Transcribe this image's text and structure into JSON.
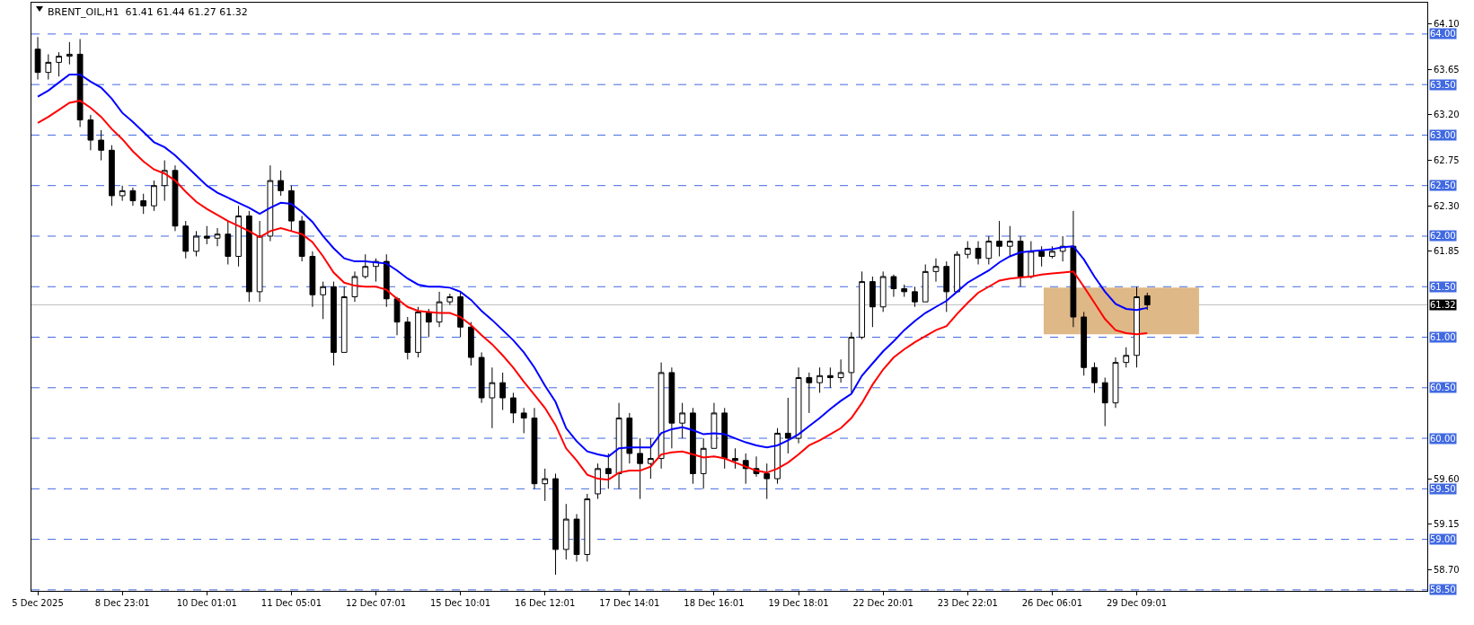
{
  "chart_data": {
    "type": "candlestick",
    "title": "BRENT_OIL,H1  61.41 61.44 61.27 61.32",
    "categories": [
      "5 Dec 2025",
      null,
      null,
      null,
      null,
      null,
      null,
      null,
      "8 Dec 23:01",
      null,
      null,
      null,
      null,
      null,
      null,
      null,
      "10 Dec 01:01",
      null,
      null,
      null,
      null,
      null,
      null,
      null,
      "11 Dec 05:01",
      null,
      null,
      null,
      null,
      null,
      null,
      null,
      "12 Dec 07:01",
      null,
      null,
      null,
      null,
      null,
      null,
      null,
      "15 Dec 10:01",
      null,
      null,
      null,
      null,
      null,
      null,
      null,
      "16 Dec 12:01",
      null,
      null,
      null,
      null,
      null,
      null,
      null,
      "17 Dec 14:01",
      null,
      null,
      null,
      null,
      null,
      null,
      null,
      "18 Dec 16:01",
      null,
      null,
      null,
      null,
      null,
      null,
      null,
      "19 Dec 18:01",
      null,
      null,
      null,
      null,
      null,
      null,
      null,
      "22 Dec 20:01",
      null,
      null,
      null,
      null,
      null,
      null,
      null,
      "23 Dec 22:01",
      null,
      null,
      null,
      null,
      null,
      null,
      null,
      "26 Dec 06:01",
      null,
      null,
      null,
      null,
      null,
      null,
      null,
      "29 Dec 09:01",
      null
    ],
    "ohlc": [
      [
        63.85,
        63.97,
        63.55,
        63.62
      ],
      [
        63.62,
        63.8,
        63.55,
        63.72
      ],
      [
        63.72,
        63.82,
        63.58,
        63.78
      ],
      [
        63.78,
        63.92,
        63.7,
        63.8
      ],
      [
        63.8,
        63.95,
        63.08,
        63.15
      ],
      [
        63.15,
        63.2,
        62.85,
        62.95
      ],
      [
        62.95,
        63.05,
        62.75,
        62.85
      ],
      [
        62.85,
        62.9,
        62.3,
        62.4
      ],
      [
        62.4,
        62.5,
        62.35,
        62.45
      ],
      [
        62.45,
        62.48,
        62.3,
        62.35
      ],
      [
        62.35,
        62.42,
        62.22,
        62.3
      ],
      [
        62.3,
        62.55,
        62.25,
        62.5
      ],
      [
        62.5,
        62.75,
        62.35,
        62.65
      ],
      [
        62.65,
        62.7,
        62.05,
        62.1
      ],
      [
        62.1,
        62.15,
        61.78,
        61.85
      ],
      [
        61.85,
        62.05,
        61.8,
        62.0
      ],
      [
        62.0,
        62.1,
        61.92,
        61.98
      ],
      [
        61.98,
        62.08,
        61.9,
        62.02
      ],
      [
        62.02,
        62.15,
        61.72,
        61.8
      ],
      [
        61.8,
        62.3,
        61.7,
        62.2
      ],
      [
        62.2,
        62.25,
        61.35,
        61.45
      ],
      [
        61.45,
        62.15,
        61.35,
        62.0
      ],
      [
        62.0,
        62.7,
        61.95,
        62.55
      ],
      [
        62.55,
        62.65,
        62.4,
        62.45
      ],
      [
        62.45,
        62.5,
        62.05,
        62.15
      ],
      [
        62.15,
        62.2,
        61.75,
        61.8
      ],
      [
        61.8,
        61.85,
        61.3,
        61.42
      ],
      [
        61.42,
        61.55,
        61.18,
        61.5
      ],
      [
        61.5,
        61.55,
        60.72,
        60.85
      ],
      [
        60.85,
        61.5,
        60.85,
        61.4
      ],
      [
        61.4,
        61.65,
        61.35,
        61.6
      ],
      [
        61.6,
        61.82,
        61.58,
        61.7
      ],
      [
        61.7,
        61.78,
        61.55,
        61.75
      ],
      [
        61.75,
        61.82,
        61.3,
        61.38
      ],
      [
        61.38,
        61.4,
        61.02,
        61.15
      ],
      [
        61.15,
        61.2,
        60.78,
        60.85
      ],
      [
        60.85,
        61.3,
        60.8,
        61.25
      ],
      [
        61.25,
        61.28,
        61.0,
        61.15
      ],
      [
        61.15,
        61.45,
        61.1,
        61.35
      ],
      [
        61.35,
        61.43,
        61.32,
        61.4
      ],
      [
        61.4,
        61.45,
        61.0,
        61.1
      ],
      [
        61.1,
        61.15,
        60.72,
        60.8
      ],
      [
        60.8,
        60.85,
        60.35,
        60.4
      ],
      [
        60.4,
        60.7,
        60.1,
        60.55
      ],
      [
        60.55,
        60.65,
        60.28,
        60.4
      ],
      [
        60.4,
        60.45,
        60.15,
        60.25
      ],
      [
        60.25,
        60.3,
        60.05,
        60.2
      ],
      [
        60.2,
        60.3,
        59.5,
        59.55
      ],
      [
        59.55,
        59.7,
        59.38,
        59.6
      ],
      [
        59.6,
        59.65,
        58.65,
        58.9
      ],
      [
        58.9,
        59.35,
        58.8,
        59.2
      ],
      [
        59.2,
        59.25,
        58.78,
        58.85
      ],
      [
        58.85,
        59.45,
        58.78,
        59.4
      ],
      [
        59.45,
        59.75,
        59.4,
        59.7
      ],
      [
        59.7,
        59.85,
        59.5,
        59.65
      ],
      [
        59.65,
        60.35,
        59.5,
        60.2
      ],
      [
        60.2,
        60.25,
        59.75,
        59.85
      ],
      [
        59.85,
        60.0,
        59.4,
        59.75
      ],
      [
        59.75,
        60.0,
        59.6,
        59.8
      ],
      [
        59.8,
        60.75,
        59.7,
        60.65
      ],
      [
        60.65,
        60.7,
        59.9,
        60.15
      ],
      [
        60.15,
        60.35,
        60.0,
        60.25
      ],
      [
        60.25,
        60.3,
        59.55,
        59.65
      ],
      [
        59.65,
        60.0,
        59.5,
        59.9
      ],
      [
        59.9,
        60.35,
        59.9,
        60.25
      ],
      [
        60.25,
        60.3,
        59.7,
        59.8
      ],
      [
        59.8,
        59.9,
        59.7,
        59.78
      ],
      [
        59.78,
        59.85,
        59.55,
        59.7
      ],
      [
        59.7,
        59.82,
        59.62,
        59.65
      ],
      [
        59.65,
        59.75,
        59.4,
        59.6
      ],
      [
        59.6,
        60.1,
        59.55,
        60.05
      ],
      [
        60.05,
        60.4,
        59.85,
        60.0
      ],
      [
        60.0,
        60.7,
        59.95,
        60.6
      ],
      [
        60.6,
        60.65,
        60.25,
        60.55
      ],
      [
        60.55,
        60.7,
        60.45,
        60.62
      ],
      [
        60.62,
        60.7,
        60.5,
        60.6
      ],
      [
        60.6,
        60.78,
        60.55,
        60.65
      ],
      [
        60.65,
        61.05,
        60.45,
        61.0
      ],
      [
        61.0,
        61.65,
        60.98,
        61.55
      ],
      [
        61.55,
        61.6,
        61.1,
        61.3
      ],
      [
        61.3,
        61.65,
        61.25,
        61.6
      ],
      [
        61.6,
        61.62,
        61.4,
        61.48
      ],
      [
        61.48,
        61.52,
        61.4,
        61.45
      ],
      [
        61.45,
        61.5,
        61.3,
        61.35
      ],
      [
        61.35,
        61.72,
        61.35,
        61.65
      ],
      [
        61.65,
        61.78,
        61.55,
        61.7
      ],
      [
        61.7,
        61.75,
        61.25,
        61.45
      ],
      [
        61.45,
        61.85,
        61.45,
        61.82
      ],
      [
        61.82,
        61.95,
        61.78,
        61.88
      ],
      [
        61.88,
        61.95,
        61.72,
        61.78
      ],
      [
        61.78,
        62.0,
        61.72,
        61.95
      ],
      [
        61.95,
        62.15,
        61.8,
        61.9
      ],
      [
        61.9,
        62.1,
        61.8,
        61.95
      ],
      [
        61.95,
        62.0,
        61.5,
        61.6
      ],
      [
        61.6,
        61.95,
        61.58,
        61.85
      ],
      [
        61.85,
        61.9,
        61.7,
        61.8
      ],
      [
        61.8,
        61.9,
        61.78,
        61.85
      ],
      [
        61.85,
        62.0,
        61.75,
        61.9
      ],
      [
        61.9,
        62.25,
        61.1,
        61.2
      ],
      [
        61.2,
        61.25,
        60.62,
        60.7
      ],
      [
        60.7,
        60.75,
        60.45,
        60.55
      ],
      [
        60.55,
        60.6,
        60.12,
        60.35
      ],
      [
        60.35,
        60.8,
        60.3,
        60.75
      ],
      [
        60.75,
        60.9,
        60.7,
        60.82
      ],
      [
        60.82,
        61.5,
        60.7,
        61.4
      ],
      [
        61.41,
        61.44,
        61.27,
        61.32
      ]
    ],
    "series": [
      {
        "type": "line",
        "color": "#0000ff",
        "values": [
          63.38,
          63.44,
          63.52,
          63.6,
          63.6,
          63.53,
          63.47,
          63.36,
          63.22,
          63.13,
          63.03,
          62.93,
          62.88,
          62.8,
          62.7,
          62.6,
          62.5,
          62.43,
          62.38,
          62.33,
          62.28,
          62.22,
          62.28,
          62.33,
          62.32,
          62.24,
          62.14,
          62.0,
          61.88,
          61.78,
          61.75,
          61.75,
          61.74,
          61.73,
          61.66,
          61.58,
          61.52,
          61.5,
          61.5,
          61.49,
          61.45,
          61.37,
          61.26,
          61.17,
          61.07,
          60.97,
          60.85,
          60.7,
          60.52,
          60.36,
          60.1,
          59.97,
          59.87,
          59.84,
          59.82,
          59.9,
          59.91,
          59.91,
          59.91,
          60.05,
          60.09,
          60.11,
          60.08,
          60.04,
          60.05,
          60.04,
          60.0,
          59.96,
          59.93,
          59.91,
          59.93,
          59.98,
          60.04,
          60.12,
          60.2,
          60.29,
          60.37,
          60.44,
          60.62,
          60.74,
          60.86,
          60.96,
          61.07,
          61.16,
          61.24,
          61.3,
          61.36,
          61.45,
          61.54,
          61.6,
          61.66,
          61.74,
          61.8,
          61.84,
          61.85,
          61.86,
          61.87,
          61.89,
          61.9,
          61.77,
          61.6,
          61.45,
          61.33,
          61.28,
          61.27,
          61.29
        ]
      },
      {
        "type": "line",
        "color": "#ff0000",
        "values": [
          63.12,
          63.18,
          63.25,
          63.32,
          63.34,
          63.27,
          63.18,
          63.06,
          62.96,
          62.84,
          62.74,
          62.66,
          62.62,
          62.55,
          62.44,
          62.34,
          62.27,
          62.21,
          62.15,
          62.1,
          62.05,
          61.99,
          62.05,
          62.08,
          62.05,
          62.02,
          61.94,
          61.8,
          61.64,
          61.54,
          61.51,
          61.5,
          61.5,
          61.47,
          61.38,
          61.3,
          61.26,
          61.25,
          61.24,
          61.24,
          61.2,
          61.12,
          61.02,
          60.93,
          60.82,
          60.7,
          60.56,
          60.43,
          60.3,
          60.13,
          59.9,
          59.78,
          59.64,
          59.6,
          59.59,
          59.66,
          59.68,
          59.68,
          59.72,
          59.84,
          59.86,
          59.87,
          59.84,
          59.81,
          59.82,
          59.8,
          59.76,
          59.72,
          59.68,
          59.66,
          59.7,
          59.76,
          59.84,
          59.93,
          59.98,
          60.04,
          60.1,
          60.2,
          60.35,
          60.53,
          60.68,
          60.8,
          60.88,
          60.95,
          61.01,
          61.07,
          61.11,
          61.23,
          61.34,
          61.44,
          61.5,
          61.56,
          61.58,
          61.59,
          61.6,
          61.62,
          61.63,
          61.64,
          61.65,
          61.5,
          61.34,
          61.18,
          61.07,
          61.04,
          61.03,
          61.04
        ]
      }
    ],
    "ylim": [
      58.49,
      64.31
    ],
    "yticks": [
      {
        "value": 64.1,
        "label": "64.10"
      },
      {
        "value": 63.65,
        "label": "63.65"
      },
      {
        "value": 63.2,
        "label": "63.20"
      },
      {
        "value": 62.75,
        "label": "62.75"
      },
      {
        "value": 62.3,
        "label": "62.30"
      },
      {
        "value": 61.85,
        "label": "61.85"
      },
      {
        "value": 59.6,
        "label": "59.60"
      },
      {
        "value": 59.15,
        "label": "59.15"
      },
      {
        "value": 58.7,
        "label": "58.70"
      }
    ],
    "ref_lines": [
      {
        "axis": "y",
        "value": 64.0,
        "label": "64.00",
        "color": "#4169e1",
        "line_style": "dashed"
      },
      {
        "axis": "y",
        "value": 63.5,
        "label": "63.50",
        "color": "#4169e1",
        "line_style": "dashed"
      },
      {
        "axis": "y",
        "value": 63.0,
        "label": "63.00",
        "color": "#4169e1",
        "line_style": "dashed"
      },
      {
        "axis": "y",
        "value": 62.5,
        "label": "62.50",
        "color": "#4169e1",
        "line_style": "dashed"
      },
      {
        "axis": "y",
        "value": 62.0,
        "label": "62.00",
        "color": "#4169e1",
        "line_style": "dashed"
      },
      {
        "axis": "y",
        "value": 61.5,
        "label": "61.50",
        "color": "#4169e1",
        "line_style": "dashed"
      },
      {
        "axis": "y",
        "value": 61.0,
        "label": "61.00",
        "color": "#4169e1",
        "line_style": "dashed"
      },
      {
        "axis": "y",
        "value": 60.5,
        "label": "60.50",
        "color": "#4169e1",
        "line_style": "dashed"
      },
      {
        "axis": "y",
        "value": 60.0,
        "label": "60.00",
        "color": "#4169e1",
        "line_style": "dashed"
      },
      {
        "axis": "y",
        "value": 59.5,
        "label": "59.50",
        "color": "#4169e1",
        "line_style": "dashed"
      },
      {
        "axis": "y",
        "value": 59.0,
        "label": "59.00",
        "color": "#4169e1",
        "line_style": "dashed"
      },
      {
        "axis": "y",
        "value": 58.5,
        "label": "58.50",
        "color": "#4169e1",
        "line_style": "dashed"
      },
      {
        "axis": "y",
        "value": 61.32,
        "label": "61.32",
        "color": "#c0c0c0",
        "line_style": "solid"
      }
    ],
    "bands": [
      {
        "axis": "y",
        "from": 61.03,
        "to": 61.49,
        "color": "#deb887"
      }
    ]
  }
}
